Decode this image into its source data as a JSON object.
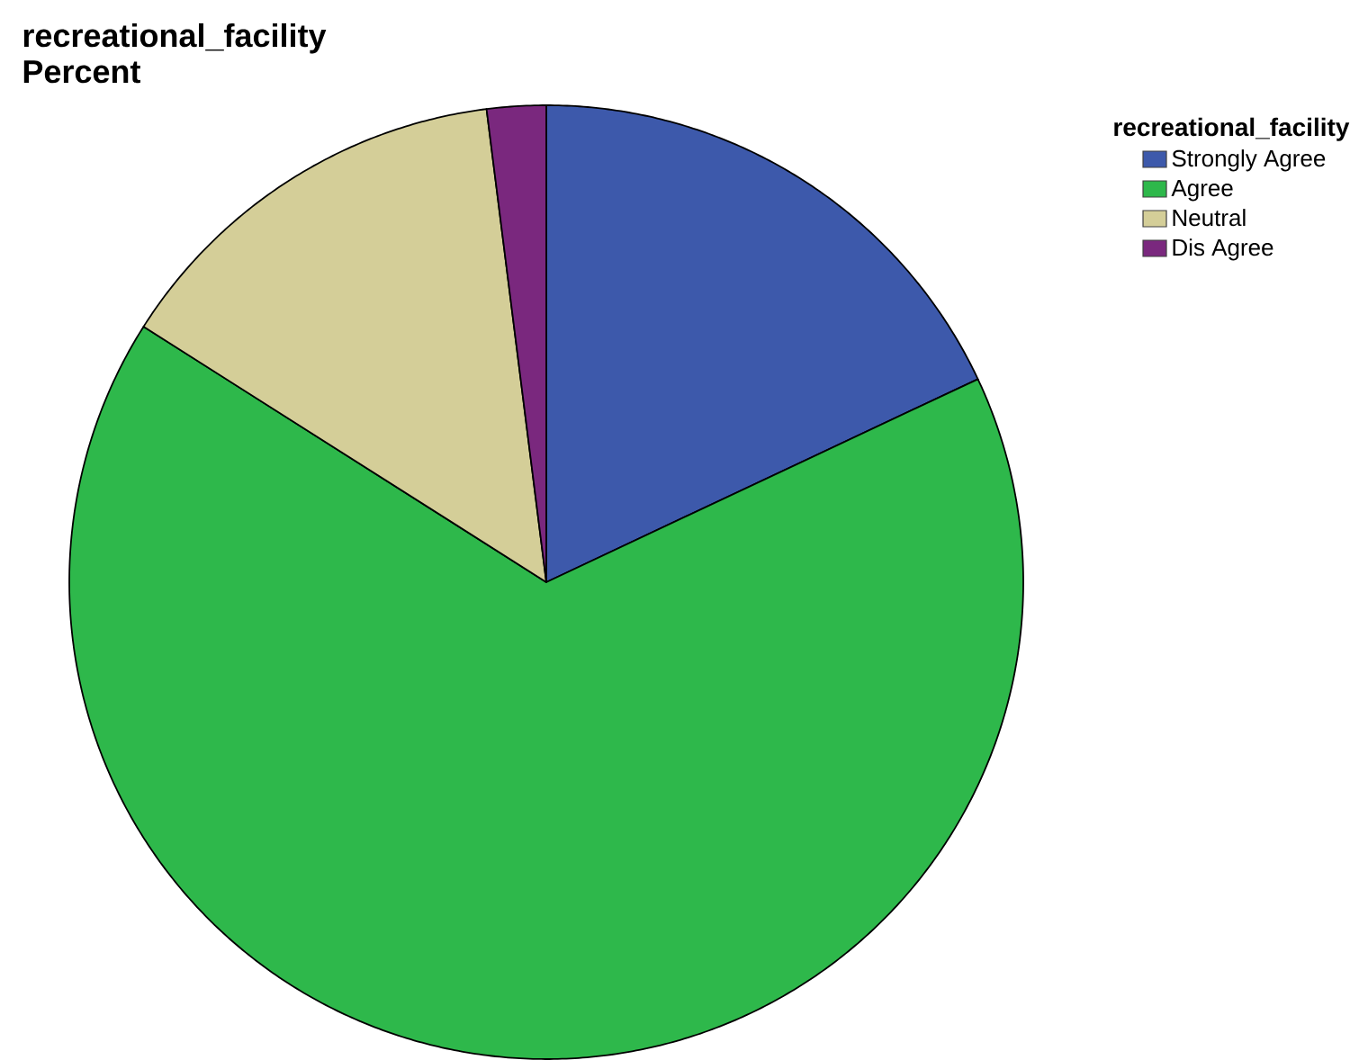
{
  "chart_data": {
    "type": "pie",
    "title": "recreational_facility",
    "subtitle": "Percent",
    "legend_title": "recreational_facility",
    "categories": [
      "Strongly Agree",
      "Agree",
      "Neutral",
      "Dis Agree"
    ],
    "values": [
      18,
      66,
      14,
      2
    ],
    "colors": [
      "#3d59ab",
      "#2eb84b",
      "#d4ce98",
      "#7a287e"
    ],
    "legend": "top right"
  }
}
